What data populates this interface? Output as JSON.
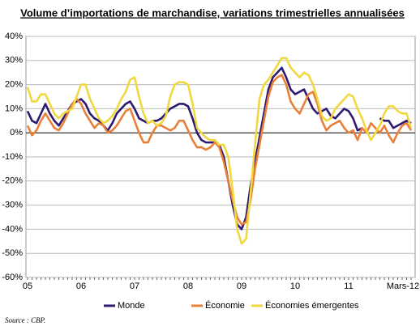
{
  "chart_data": {
    "type": "line",
    "title": "Volume d’importations de marchandise, variations trimestrielles annualisées",
    "source": "Source : CBP.",
    "categories": [
      "05",
      null,
      null,
      null,
      null,
      null,
      null,
      null,
      null,
      null,
      null,
      null,
      "06",
      null,
      null,
      null,
      null,
      null,
      null,
      null,
      null,
      null,
      null,
      null,
      "07",
      null,
      null,
      null,
      null,
      null,
      null,
      null,
      null,
      null,
      null,
      null,
      "08",
      null,
      null,
      null,
      null,
      null,
      null,
      null,
      null,
      null,
      null,
      null,
      "09",
      null,
      null,
      null,
      null,
      null,
      null,
      null,
      null,
      null,
      null,
      null,
      "10",
      null,
      null,
      null,
      null,
      null,
      null,
      null,
      null,
      null,
      null,
      null,
      "11",
      null,
      null,
      null,
      null,
      null,
      null,
      null,
      null,
      null,
      null,
      null,
      null,
      null,
      "Mars-12"
    ],
    "series": [
      {
        "name": "Monde",
        "color": "#2e1a6e",
        "values": [
          9,
          5,
          4,
          8,
          12,
          8,
          5,
          3,
          6,
          9,
          12,
          13,
          14,
          12,
          8,
          6,
          5,
          3,
          1,
          4,
          8,
          10,
          12,
          13,
          10,
          6,
          5,
          4,
          5,
          5,
          6,
          8,
          10,
          11,
          12,
          12,
          11,
          6,
          0,
          -3,
          -4,
          -4,
          -4,
          -5,
          -10,
          -20,
          -30,
          -38,
          -40,
          -35,
          -22,
          -12,
          -2,
          8,
          18,
          23,
          25,
          27,
          23,
          18,
          16,
          17,
          18,
          14,
          10,
          8,
          9,
          10,
          7,
          6,
          8,
          10,
          9,
          6,
          1,
          2,
          null,
          null,
          null,
          6,
          5,
          5,
          2,
          3,
          4,
          5,
          4
        ]
      },
      {
        "name": "Économie",
        "color": "#e8803a",
        "values": [
          3,
          -1,
          1,
          5,
          8,
          5,
          2,
          1,
          4,
          8,
          12,
          14,
          12,
          8,
          5,
          2,
          4,
          3,
          0,
          1,
          3,
          6,
          9,
          10,
          5,
          0,
          -4,
          -4,
          0,
          3,
          3,
          2,
          1,
          2,
          5,
          5,
          1,
          -3,
          -6,
          -6,
          -7,
          -6,
          -4,
          -6,
          -12,
          -20,
          -28,
          -35,
          -38,
          -37,
          -28,
          -15,
          -5,
          5,
          15,
          21,
          23,
          24,
          20,
          13,
          10,
          8,
          12,
          16,
          17,
          12,
          5,
          1,
          3,
          4,
          5,
          2,
          0,
          1,
          -3,
          2,
          0,
          4,
          2,
          0,
          3,
          -1,
          -4,
          0,
          3,
          4,
          1
        ]
      },
      {
        "name": "Économies émergentes",
        "color": "#f0d840",
        "values": [
          19,
          13,
          13,
          16,
          16,
          12,
          8,
          6,
          8,
          9,
          10,
          15,
          20,
          20,
          14,
          10,
          6,
          4,
          5,
          7,
          10,
          14,
          17,
          22,
          23,
          15,
          8,
          4,
          5,
          3,
          4,
          7,
          15,
          20,
          21,
          21,
          20,
          12,
          2,
          0,
          -2,
          -3,
          -3,
          -5,
          -5,
          -10,
          -24,
          -40,
          -46,
          -44,
          -25,
          -5,
          14,
          20,
          22,
          25,
          28,
          31,
          31,
          27,
          25,
          23,
          25,
          24,
          20,
          14,
          7,
          5,
          6,
          10,
          12,
          14,
          16,
          15,
          10,
          6,
          1,
          -3,
          0,
          3,
          8,
          11,
          11,
          9,
          8,
          8,
          2
        ]
      }
    ],
    "ylim": [
      -60,
      40
    ],
    "yticks": [
      {
        "value": -60,
        "label": "-60%"
      },
      {
        "value": -50,
        "label": "-50%"
      },
      {
        "value": -40,
        "label": "-40%"
      },
      {
        "value": -30,
        "label": "-30%"
      },
      {
        "value": -20,
        "label": "-20%"
      },
      {
        "value": -10,
        "label": "-10%"
      },
      {
        "value": 0,
        "label": "0%"
      },
      {
        "value": 10,
        "label": "10%"
      },
      {
        "value": 20,
        "label": "20%"
      },
      {
        "value": 30,
        "label": "30%"
      },
      {
        "value": 40,
        "label": "40%"
      }
    ],
    "grid": true
  }
}
